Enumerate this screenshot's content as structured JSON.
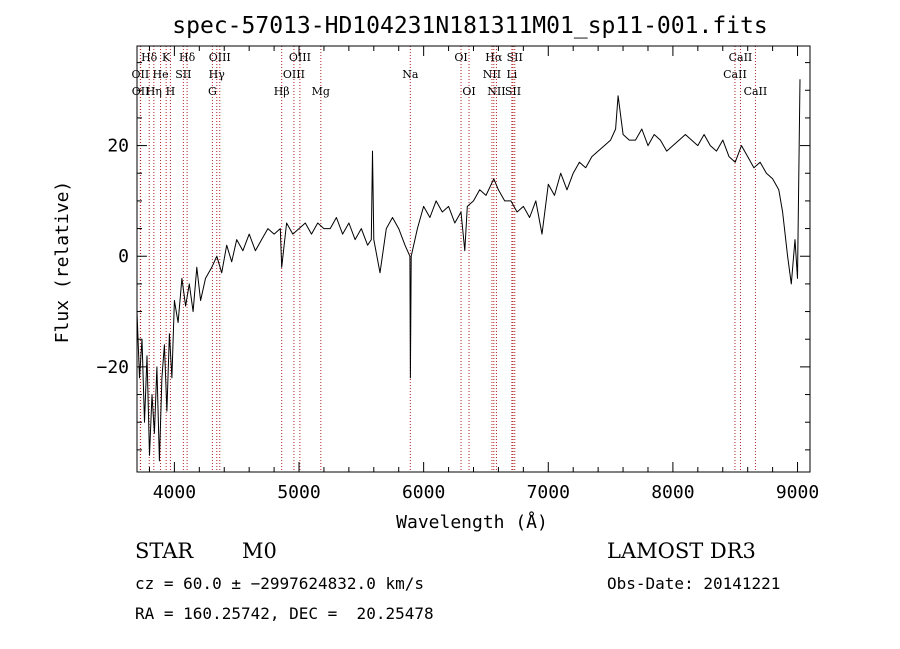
{
  "chart_data": {
    "type": "line",
    "title": "spec-57013-HD104231N181311M01_sp11-001.fits",
    "xlabel": "Wavelength (Å)",
    "ylabel": "Flux (relative)",
    "xlim": [
      3700,
      9100
    ],
    "ylim": [
      -39,
      38
    ],
    "x_ticks": [
      4000,
      5000,
      6000,
      7000,
      8000,
      9000
    ],
    "y_ticks": [
      -20,
      0,
      20
    ],
    "grid": false,
    "series": [
      {
        "name": "spectrum",
        "x": [
          3700,
          3720,
          3740,
          3760,
          3780,
          3800,
          3820,
          3840,
          3860,
          3880,
          3900,
          3920,
          3940,
          3960,
          3980,
          4000,
          4030,
          4060,
          4090,
          4120,
          4150,
          4180,
          4210,
          4250,
          4300,
          4340,
          4380,
          4420,
          4460,
          4500,
          4550,
          4600,
          4650,
          4700,
          4750,
          4800,
          4850,
          4861,
          4900,
          4950,
          5000,
          5050,
          5100,
          5150,
          5200,
          5250,
          5300,
          5350,
          5400,
          5450,
          5500,
          5550,
          5580,
          5590,
          5600,
          5650,
          5700,
          5750,
          5800,
          5850,
          5890,
          5894,
          5900,
          5950,
          6000,
          6050,
          6100,
          6150,
          6200,
          6250,
          6300,
          6330,
          6350,
          6400,
          6450,
          6500,
          6563,
          6600,
          6650,
          6700,
          6750,
          6800,
          6850,
          6900,
          6950,
          7000,
          7050,
          7100,
          7150,
          7200,
          7250,
          7300,
          7350,
          7400,
          7450,
          7500,
          7540,
          7560,
          7600,
          7650,
          7700,
          7750,
          7800,
          7850,
          7900,
          7950,
          8000,
          8050,
          8100,
          8150,
          8200,
          8250,
          8300,
          8350,
          8400,
          8450,
          8500,
          8550,
          8600,
          8650,
          8700,
          8750,
          8800,
          8850,
          8880,
          8900,
          8920,
          8950,
          8980,
          9000,
          9020
        ],
        "values": [
          -10,
          -22,
          -15,
          -30,
          -18,
          -36,
          -25,
          -32,
          -20,
          -37,
          -22,
          -16,
          -28,
          -14,
          -22,
          -8,
          -12,
          -4,
          -9,
          -5,
          -10,
          -2,
          -8,
          -4,
          -2,
          0,
          -3,
          2,
          -1,
          3,
          1,
          4,
          1,
          3,
          5,
          4,
          5,
          -2,
          6,
          4,
          5,
          6,
          4,
          6,
          5,
          5,
          7,
          4,
          6,
          3,
          5,
          2,
          3,
          19,
          3,
          -3,
          5,
          7,
          5,
          2,
          0,
          -22,
          0,
          5,
          9,
          7,
          10,
          8,
          9,
          6,
          8,
          1,
          9,
          10,
          12,
          11,
          14,
          12,
          10,
          10,
          8,
          9,
          7,
          10,
          4,
          13,
          11,
          15,
          12,
          15,
          17,
          16,
          18,
          19,
          20,
          21,
          23,
          29,
          22,
          21,
          21,
          23,
          20,
          22,
          21,
          19,
          20,
          21,
          22,
          21,
          20,
          22,
          20,
          19,
          21,
          18,
          17,
          20,
          18,
          16,
          17,
          15,
          14,
          12,
          8,
          4,
          0,
          -5,
          3,
          -4,
          32
        ]
      }
    ],
    "lines": [
      {
        "label": "Hδ",
        "wavelength": 3798,
        "row": 0
      },
      {
        "label": "K",
        "wavelength": 3934,
        "row": 0
      },
      {
        "label": "Hδ",
        "wavelength": 4102,
        "row": 0
      },
      {
        "label": "OIII",
        "wavelength": 4364,
        "row": 0
      },
      {
        "label": "OIII",
        "wavelength": 5007,
        "row": 0
      },
      {
        "label": "OI",
        "wavelength": 6300,
        "row": 0
      },
      {
        "label": "Hα",
        "wavelength": 6563,
        "row": 0
      },
      {
        "label": "SII",
        "wavelength": 6731,
        "row": 0
      },
      {
        "label": "CaII",
        "wavelength": 8542,
        "row": 0
      },
      {
        "label": "OII",
        "wavelength": 3727,
        "row": 1
      },
      {
        "label": "He",
        "wavelength": 3889,
        "row": 1
      },
      {
        "label": "SII",
        "wavelength": 4072,
        "row": 1
      },
      {
        "label": "Hγ",
        "wavelength": 4340,
        "row": 1
      },
      {
        "label": "OIII",
        "wavelength": 4959,
        "row": 1
      },
      {
        "label": "Na",
        "wavelength": 5893,
        "row": 1
      },
      {
        "label": "NII",
        "wavelength": 6548,
        "row": 1
      },
      {
        "label": "Li",
        "wavelength": 6708,
        "row": 1
      },
      {
        "label": "CaII",
        "wavelength": 8498,
        "row": 1
      },
      {
        "label": "OII",
        "wavelength": 3729,
        "row": 2
      },
      {
        "label": "Hη",
        "wavelength": 3835,
        "row": 2
      },
      {
        "label": "H",
        "wavelength": 3968,
        "row": 2
      },
      {
        "label": "G",
        "wavelength": 4305,
        "row": 2
      },
      {
        "label": "Hβ",
        "wavelength": 4861,
        "row": 2
      },
      {
        "label": "Mg",
        "wavelength": 5175,
        "row": 2
      },
      {
        "label": "OI",
        "wavelength": 6364,
        "row": 2
      },
      {
        "label": "NII",
        "wavelength": 6584,
        "row": 2
      },
      {
        "label": "SII",
        "wavelength": 6717,
        "row": 2
      },
      {
        "label": "CaII",
        "wavelength": 8662,
        "row": 2
      }
    ]
  },
  "info": {
    "object_type": "STAR",
    "subclass": "M0",
    "survey": "LAMOST DR3",
    "cz": "cz = 60.0 ± −2997624832.0 km/s",
    "obs_date": "Obs-Date: 20141221",
    "radec": "RA = 160.25742, DEC =  20.25478"
  },
  "colors": {
    "foreground": "#000000",
    "line_marker": "#b22222",
    "background": "#ffffff"
  }
}
